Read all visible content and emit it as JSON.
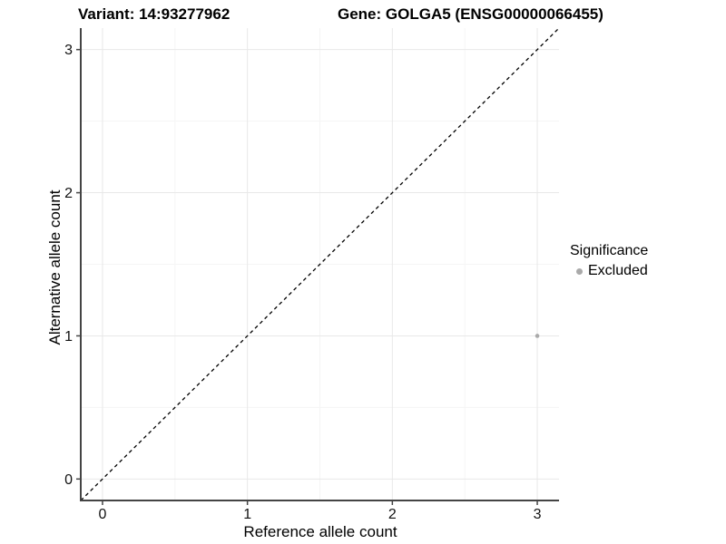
{
  "header": {
    "variant_title": "Variant: 14:93277962",
    "gene_title": "Gene: GOLGA5 (ENSG00000066455)"
  },
  "chart_data": {
    "type": "scatter",
    "xlabel": "Reference allele count",
    "ylabel": "Alternative allele count",
    "xlim": [
      -0.15,
      3.15
    ],
    "ylim": [
      -0.15,
      3.15
    ],
    "xticks": [
      0,
      1,
      2,
      3
    ],
    "yticks": [
      0,
      1,
      2,
      3
    ],
    "minor_xticks": [
      0.5,
      1.5,
      2.5
    ],
    "minor_yticks": [
      0.5,
      1.5,
      2.5
    ],
    "grid": true,
    "identity_line": {
      "x1": -0.15,
      "y1": -0.15,
      "x2": 3.15,
      "y2": 3.15,
      "style": "dashed",
      "color": "#000000"
    },
    "series": [
      {
        "name": "Excluded",
        "color": "#aaaaaa",
        "points": [
          {
            "x": 3,
            "y": 1
          }
        ]
      }
    ],
    "legend": {
      "title": "Significance",
      "position": "right",
      "entries": [
        {
          "label": "Excluded",
          "color": "#aaaaaa",
          "marker": "dot-icon"
        }
      ]
    }
  },
  "colors": {
    "background": "#ffffff",
    "grid_major": "#e8e8e8",
    "grid_minor": "#f5f5f5",
    "axis_line": "#444444",
    "tick_text": "#111111",
    "point": "#aaaaaa"
  }
}
